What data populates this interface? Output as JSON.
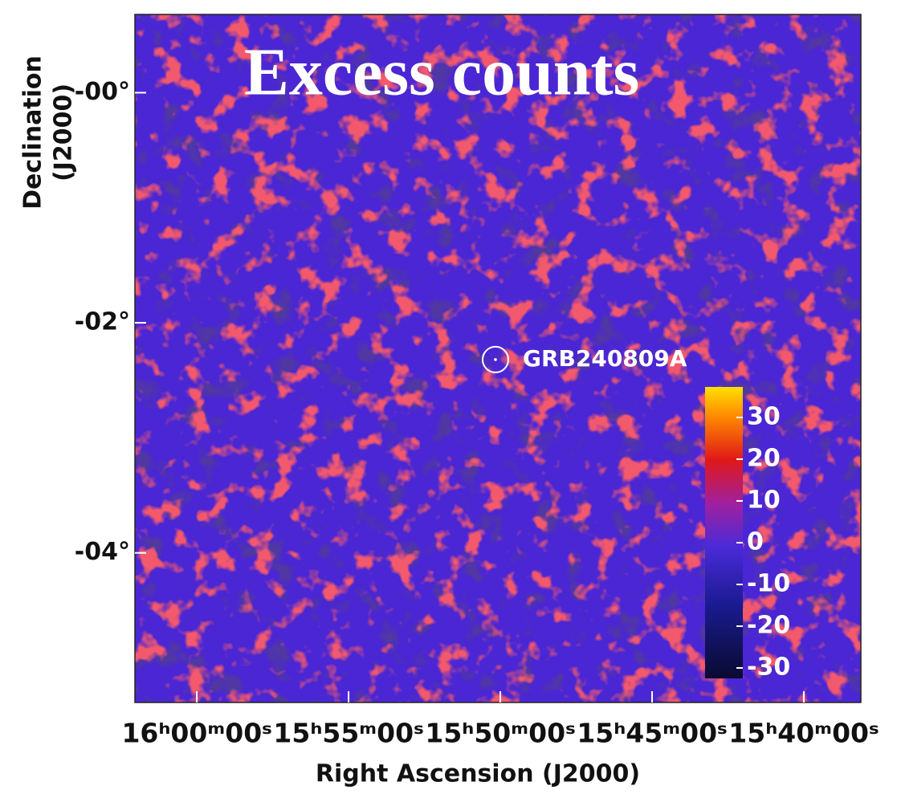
{
  "chart_data": {
    "type": "skymap",
    "title": "Excess counts",
    "x_label": "Right Ascension (J2000)",
    "y_label": [
      "Declination",
      "(J2000)"
    ],
    "xlim": [
      240.51,
      234.53
    ],
    "ylim": [
      -5.3,
      0.68
    ],
    "xticks": [
      {
        "value": 240,
        "label": "16ʰ00ᵐ00ˢ"
      },
      {
        "value": 238.75,
        "label": "15ʰ55ᵐ00ˢ"
      },
      {
        "value": 237.5,
        "label": "15ʰ50ᵐ00ˢ"
      },
      {
        "value": 236.25,
        "label": "15ʰ45ᵐ00ˢ"
      },
      {
        "value": 235,
        "label": "15ʰ40ᵐ00ˢ"
      }
    ],
    "yticks": [
      {
        "value": 0,
        "label": "-00°"
      },
      {
        "value": -2,
        "label": "-02°"
      },
      {
        "value": -4,
        "label": "-04°"
      }
    ],
    "source": {
      "name": "GRB240809A",
      "x": 237.54,
      "y": -2.32
    },
    "colorbar": {
      "clim": [
        -32.5,
        37.3
      ],
      "ticks": [
        30,
        20,
        10,
        0,
        -10,
        -20,
        -30
      ]
    }
  }
}
